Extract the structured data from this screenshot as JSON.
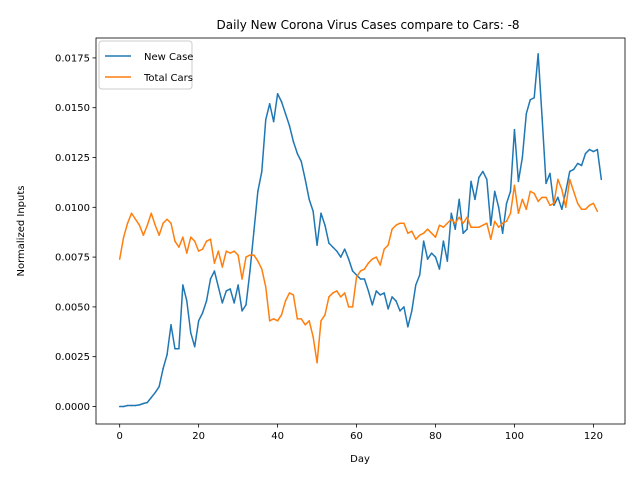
{
  "chart_data": {
    "type": "line",
    "title": "Daily New Corona Virus Cases compare to Cars: -8",
    "xlabel": "Day",
    "ylabel": "Normalized Inputs",
    "xlim": [
      -6,
      128
    ],
    "ylim": [
      -0.00088,
      0.0185
    ],
    "xticks": [
      0,
      20,
      40,
      60,
      80,
      100,
      120
    ],
    "xtick_labels": [
      "0",
      "20",
      "40",
      "60",
      "80",
      "100",
      "120"
    ],
    "yticks": [
      0.0,
      0.0025,
      0.005,
      0.0075,
      0.01,
      0.0125,
      0.015,
      0.0175
    ],
    "ytick_labels": [
      "0.0000",
      "0.0025",
      "0.0050",
      "0.0075",
      "0.0100",
      "0.0125",
      "0.0150",
      "0.0175"
    ],
    "grid": false,
    "legend_position": "upper left",
    "series": [
      {
        "name": "New Case",
        "color": "#1f77b4",
        "values": [
          0.0,
          0.0,
          5e-05,
          5e-05,
          5e-05,
          8e-05,
          0.00015,
          0.0002,
          0.00045,
          0.0007,
          0.001,
          0.0019,
          0.0026,
          0.0041,
          0.0029,
          0.0029,
          0.0061,
          0.0053,
          0.0037,
          0.003,
          0.0043,
          0.0047,
          0.0053,
          0.0064,
          0.0068,
          0.006,
          0.0052,
          0.0058,
          0.0059,
          0.0052,
          0.0061,
          0.0048,
          0.0051,
          0.0068,
          0.0088,
          0.0108,
          0.0118,
          0.0144,
          0.0152,
          0.0143,
          0.0157,
          0.0153,
          0.0147,
          0.0141,
          0.0133,
          0.0127,
          0.0123,
          0.0114,
          0.0104,
          0.0098,
          0.0081,
          0.0097,
          0.0091,
          0.0082,
          0.008,
          0.0078,
          0.0075,
          0.0079,
          0.0074,
          0.0068,
          0.0066,
          0.0064,
          0.0064,
          0.0058,
          0.0051,
          0.0058,
          0.0056,
          0.0057,
          0.0049,
          0.0055,
          0.0053,
          0.0048,
          0.005,
          0.004,
          0.0048,
          0.0061,
          0.0066,
          0.0083,
          0.0074,
          0.0077,
          0.0075,
          0.0069,
          0.0083,
          0.0073,
          0.0097,
          0.0089,
          0.0104,
          0.0087,
          0.0089,
          0.0113,
          0.0104,
          0.0115,
          0.0118,
          0.0114,
          0.0091,
          0.0108,
          0.01,
          0.0087,
          0.0102,
          0.0108,
          0.0139,
          0.0113,
          0.0125,
          0.0147,
          0.0154,
          0.0155,
          0.0177,
          0.0145,
          0.0112,
          0.0117,
          0.0101,
          0.0105,
          0.0099,
          0.0108,
          0.0118,
          0.0119,
          0.0122,
          0.0121,
          0.0127,
          0.0129,
          0.0128,
          0.0129,
          0.0114
        ]
      },
      {
        "name": "Total Cars",
        "color": "#ff7f0e",
        "values": [
          0.0074,
          0.0085,
          0.0092,
          0.0097,
          0.0094,
          0.0091,
          0.0086,
          0.0091,
          0.0097,
          0.0091,
          0.0086,
          0.0092,
          0.0094,
          0.0092,
          0.0083,
          0.008,
          0.0085,
          0.0077,
          0.0085,
          0.0083,
          0.0078,
          0.0079,
          0.0083,
          0.0084,
          0.0072,
          0.0078,
          0.007,
          0.0078,
          0.0077,
          0.0078,
          0.0076,
          0.0064,
          0.0075,
          0.0076,
          0.0076,
          0.0073,
          0.0069,
          0.006,
          0.0043,
          0.0044,
          0.0043,
          0.0046,
          0.0053,
          0.0057,
          0.0056,
          0.0044,
          0.0044,
          0.0041,
          0.0043,
          0.0035,
          0.0022,
          0.0043,
          0.0046,
          0.0055,
          0.0057,
          0.0058,
          0.0055,
          0.0057,
          0.005,
          0.005,
          0.0065,
          0.0068,
          0.0069,
          0.0072,
          0.0074,
          0.0075,
          0.0071,
          0.0079,
          0.0081,
          0.0089,
          0.0091,
          0.0092,
          0.0092,
          0.0087,
          0.0088,
          0.0084,
          0.0086,
          0.0087,
          0.0089,
          0.0087,
          0.0085,
          0.0091,
          0.009,
          0.0092,
          0.0094,
          0.0092,
          0.0095,
          0.0092,
          0.0095,
          0.009,
          0.009,
          0.009,
          0.0091,
          0.0092,
          0.0084,
          0.0093,
          0.009,
          0.0092,
          0.0093,
          0.0097,
          0.0111,
          0.0097,
          0.0104,
          0.0099,
          0.0108,
          0.0107,
          0.0103,
          0.0105,
          0.0105,
          0.0101,
          0.0102,
          0.0114,
          0.0109,
          0.01,
          0.0114,
          0.0108,
          0.0102,
          0.0099,
          0.0099,
          0.0101,
          0.0102,
          0.0098
        ]
      }
    ]
  }
}
